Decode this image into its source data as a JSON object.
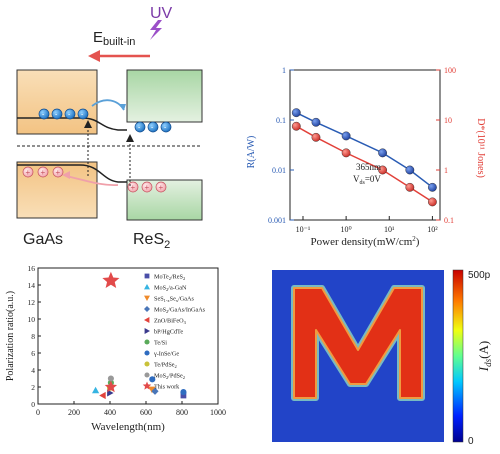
{
  "band_diagram": {
    "uv_label": "UV",
    "ebuilt_main": "E",
    "ebuilt_sub": "built-in",
    "left_material": "GaAs",
    "right_material": "ReS",
    "right_sub": "2"
  },
  "responsivity_chart": {
    "chart_data": {
      "type": "scatter",
      "x": [
        0.07,
        0.2,
        1,
        7,
        30,
        100
      ],
      "series": [
        {
          "name": "R",
          "values": [
            0.14,
            0.09,
            0.048,
            0.022,
            0.01,
            0.0045
          ],
          "color": "#2a5cb4",
          "axis": "left"
        },
        {
          "name": "D*",
          "values": [
            7.5,
            4.5,
            2.2,
            1.0,
            0.45,
            0.23
          ],
          "color": "#e2413a",
          "axis": "right"
        }
      ],
      "xscale": "log",
      "xlim": [
        0.05,
        150
      ],
      "ylim_left": [
        0.001,
        1
      ],
      "ylim_right": [
        0.1,
        100
      ],
      "x_ticks": [
        "10⁻¹",
        "10⁰",
        "10¹",
        "10²"
      ],
      "yl_ticks": [
        "1",
        "0.1",
        "0.01",
        "0.001"
      ],
      "yr_ticks": [
        "100",
        "10",
        "1",
        "0.1"
      ]
    },
    "xlabel_main": "Power density(mW/cm",
    "xlabel_sup": "2",
    "xlabel_end": ")",
    "ylabel_left": "R(A/W)",
    "ylabel_right": "D*(10¹¹ Jones)",
    "annotation_1": "365nm",
    "annotation_2_main": "V",
    "annotation_2_sub": "ds",
    "annotation_2_end": "=0V"
  },
  "polarization_chart": {
    "chart_data": {
      "type": "scatter",
      "title": "",
      "xlabel": "Wavelength(nm)",
      "ylabel": "Polarization ratio(a.u.)",
      "xlim": [
        0,
        1000
      ],
      "ylim": [
        0,
        16
      ],
      "x_ticks": [
        0,
        200,
        400,
        600,
        800,
        1000
      ],
      "y_ticks": [
        0,
        2,
        4,
        6,
        8,
        10,
        12,
        14,
        16
      ],
      "series": [
        {
          "name": "MoTe2/ReS2",
          "marker": "square",
          "color": "#4a4ea8",
          "points": [
            [
              808,
              1.0
            ]
          ]
        },
        {
          "name": "MoS2/a-GaN",
          "marker": "triangle-up",
          "color": "#35b4e2",
          "points": [
            [
              320,
              1.6
            ]
          ]
        },
        {
          "name": "SeS(1-x)Se(x)/GaAs",
          "marker": "triangle-down",
          "color": "#ef8a2a",
          "points": [
            [
              633,
              1.7
            ]
          ]
        },
        {
          "name": "MoS2/GaAs/InGaAs",
          "marker": "diamond",
          "color": "#4a76b8",
          "points": [
            [
              650,
              1.5
            ]
          ]
        },
        {
          "name": "ZnO/BiFeO3",
          "marker": "triangle-left",
          "color": "#e2433c",
          "points": [
            [
              360,
              1.0
            ]
          ]
        },
        {
          "name": "bP/HgCdTe",
          "marker": "triangle-right",
          "color": "#3a3a8c",
          "points": [
            [
              400,
              1.3
            ]
          ]
        },
        {
          "name": "Te/Si",
          "marker": "circle",
          "color": "#5aaa5a",
          "points": [
            [
              405,
              2.5
            ]
          ]
        },
        {
          "name": "γ-InSe/Ge",
          "marker": "circle",
          "color": "#2f6cc0",
          "points": [
            [
              635,
              2.9
            ],
            [
              808,
              1.4
            ]
          ]
        },
        {
          "name": "Te/PdSe2",
          "marker": "circle",
          "color": "#c9c23a",
          "points": [
            [
              400,
              1.9
            ]
          ]
        },
        {
          "name": "MoS2/PdSe2",
          "marker": "circle",
          "color": "#999999",
          "points": [
            [
              405,
              3.0
            ]
          ]
        },
        {
          "name": "This work",
          "marker": "star",
          "color": "#e24a4a",
          "points": [
            [
              405,
              14.5
            ],
            [
              405,
              2.0
            ]
          ]
        }
      ]
    },
    "legend": [
      {
        "marker": "square",
        "color": "#4a4ea8",
        "parts": [
          [
            "MoTe",
            ""
          ],
          [
            "2",
            "sub"
          ],
          [
            "/ReS",
            ""
          ],
          [
            "2",
            "sub"
          ]
        ]
      },
      {
        "marker": "triangle-up",
        "color": "#35b4e2",
        "parts": [
          [
            "MoS",
            ""
          ],
          [
            "2",
            "sub"
          ],
          [
            "/a-GaN",
            ""
          ]
        ]
      },
      {
        "marker": "triangle-down",
        "color": "#ef8a2a",
        "parts": [
          [
            "SeS",
            ""
          ],
          [
            "1-x",
            "sub"
          ],
          [
            "Se",
            ""
          ],
          [
            "x",
            "sub"
          ],
          [
            "/GaAs",
            ""
          ]
        ]
      },
      {
        "marker": "diamond",
        "color": "#4a76b8",
        "parts": [
          [
            "MoS",
            ""
          ],
          [
            "2",
            "sub"
          ],
          [
            "/GaAs/InGaAs",
            ""
          ]
        ]
      },
      {
        "marker": "triangle-left",
        "color": "#e2433c",
        "parts": [
          [
            "ZnO/BiFeO",
            ""
          ],
          [
            "3",
            "sub"
          ]
        ]
      },
      {
        "marker": "triangle-right",
        "color": "#3a3a8c",
        "parts": [
          [
            "bP/HgCdTe",
            ""
          ]
        ]
      },
      {
        "marker": "circle",
        "color": "#5aaa5a",
        "parts": [
          [
            "Te/Si",
            ""
          ]
        ]
      },
      {
        "marker": "circle",
        "color": "#2f6cc0",
        "parts": [
          [
            "γ-InSe/Ge",
            ""
          ]
        ]
      },
      {
        "marker": "circle",
        "color": "#c9c23a",
        "parts": [
          [
            "Te/PdSe",
            ""
          ],
          [
            "2",
            "sub"
          ]
        ]
      },
      {
        "marker": "circle",
        "color": "#999999",
        "parts": [
          [
            "MoS",
            ""
          ],
          [
            "2",
            "sub"
          ],
          [
            "/PdSe",
            ""
          ],
          [
            "2",
            "sub"
          ]
        ]
      },
      {
        "marker": "star",
        "color": "#e24a4a",
        "parts": [
          [
            "This work",
            ""
          ]
        ]
      }
    ]
  },
  "current_map": {
    "letter": "M",
    "colorbar_max": "500p",
    "colorbar_min": "0",
    "colorbar_label_main": "I",
    "colorbar_label_sub": "ds",
    "colorbar_label_end": "(A)",
    "colors": {
      "background": "#2244c8",
      "letter": "#e03018",
      "edge": "#7ed0c0"
    }
  }
}
